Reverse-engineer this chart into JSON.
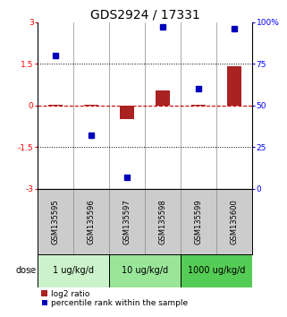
{
  "title": "GDS2924 / 17331",
  "samples": [
    "GSM135595",
    "GSM135596",
    "GSM135597",
    "GSM135598",
    "GSM135599",
    "GSM135600"
  ],
  "log2_ratio": [
    0.04,
    0.04,
    -0.5,
    0.55,
    0.04,
    1.4
  ],
  "percentile_rank": [
    80,
    32,
    7,
    97,
    60,
    96
  ],
  "dose_groups": [
    {
      "label": "1 ug/kg/d",
      "samples": [
        0,
        1
      ],
      "color": "#ccf2cc"
    },
    {
      "label": "10 ug/kg/d",
      "samples": [
        2,
        3
      ],
      "color": "#99e699"
    },
    {
      "label": "1000 ug/kg/d",
      "samples": [
        4,
        5
      ],
      "color": "#55cc55"
    }
  ],
  "ylim_left": [
    -3,
    3
  ],
  "ylim_right": [
    0,
    100
  ],
  "yticks_left": [
    -3,
    -1.5,
    0,
    1.5,
    3
  ],
  "yticks_right": [
    0,
    25,
    50,
    75,
    100
  ],
  "hlines": [
    -1.5,
    1.5
  ],
  "bar_color": "#aa2222",
  "dot_color": "#0000bb",
  "zero_line_color": "#cc0000",
  "background_color": "#ffffff",
  "sample_bg": "#cccccc",
  "dose_label": "dose",
  "legend_bar": "log2 ratio",
  "legend_dot": "percentile rank within the sample",
  "title_fontsize": 10,
  "tick_fontsize": 6.5,
  "sample_label_fontsize": 6,
  "dose_fontsize": 7,
  "legend_fontsize": 6.5
}
